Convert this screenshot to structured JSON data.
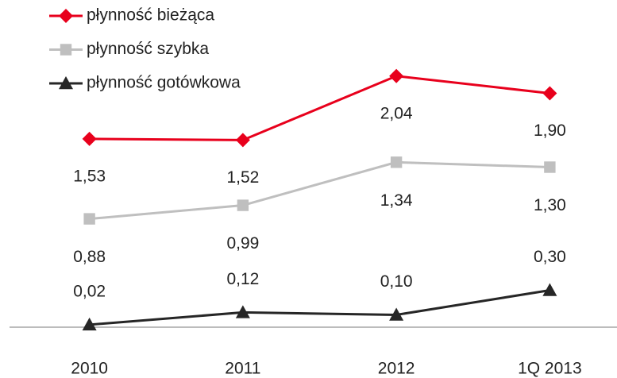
{
  "chart_data": {
    "type": "line",
    "categories": [
      "2010",
      "2011",
      "2012",
      "1Q 2013"
    ],
    "series": [
      {
        "name": "płynność bieżąca",
        "color": "#e8001c",
        "marker": "diamond",
        "values": [
          1.53,
          1.52,
          2.04,
          1.9
        ],
        "value_labels": [
          "1,53",
          "1,52",
          "2,04",
          "1,90"
        ]
      },
      {
        "name": "płynność szybka",
        "color": "#bfbfbf",
        "marker": "square",
        "values": [
          0.88,
          0.99,
          1.34,
          1.3
        ],
        "value_labels": [
          "0,88",
          "0,99",
          "1,34",
          "1,30"
        ]
      },
      {
        "name": "płynność gotówkowa",
        "color": "#262626",
        "marker": "triangle",
        "values": [
          0.02,
          0.12,
          0.1,
          0.3
        ],
        "value_labels": [
          "0,02",
          "0,12",
          "0,10",
          "0,30"
        ]
      }
    ],
    "ylim": [
      0,
      2.6
    ],
    "legend": "top-left"
  }
}
